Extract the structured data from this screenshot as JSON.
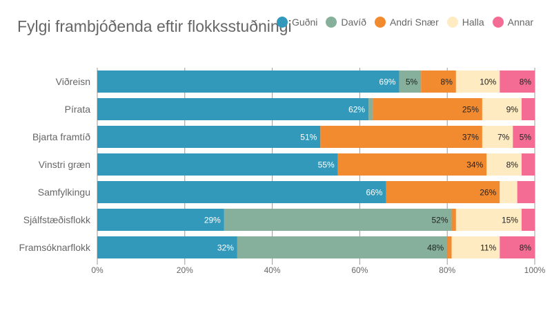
{
  "chart_data": {
    "type": "bar",
    "orientation": "horizontal",
    "stacked": true,
    "title": "Fylgi frambjóðenda eftir flokksstuðningi",
    "categories": [
      "Viðreisn",
      "Pírata",
      "Bjarta framtíð",
      "Vinstri græn",
      "Samfylkingu",
      "Sjálfstæðisflokk",
      "Framsóknarflokk"
    ],
    "series": [
      {
        "name": "Guðni",
        "color": "#3399bb",
        "values": [
          69,
          62,
          51,
          55,
          66,
          29,
          32
        ]
      },
      {
        "name": "Davíð",
        "color": "#86b09b",
        "values": [
          5,
          1,
          0,
          0,
          0,
          52,
          48
        ]
      },
      {
        "name": "Andri Snær",
        "color": "#f28a30",
        "values": [
          8,
          25,
          37,
          34,
          26,
          1,
          1
        ]
      },
      {
        "name": "Halla",
        "color": "#feebc2",
        "values": [
          10,
          9,
          7,
          8,
          4,
          15,
          11
        ]
      },
      {
        "name": "Annar",
        "color": "#f46c94",
        "values": [
          8,
          3,
          5,
          3,
          4,
          3,
          8
        ]
      }
    ],
    "xlim": [
      0,
      100
    ],
    "xticks": [
      "0%",
      "20%",
      "40%",
      "60%",
      "80%",
      "100%"
    ],
    "grid": true,
    "legend": "top-right",
    "data_labels": "percent, shown for values of 5 or more"
  }
}
